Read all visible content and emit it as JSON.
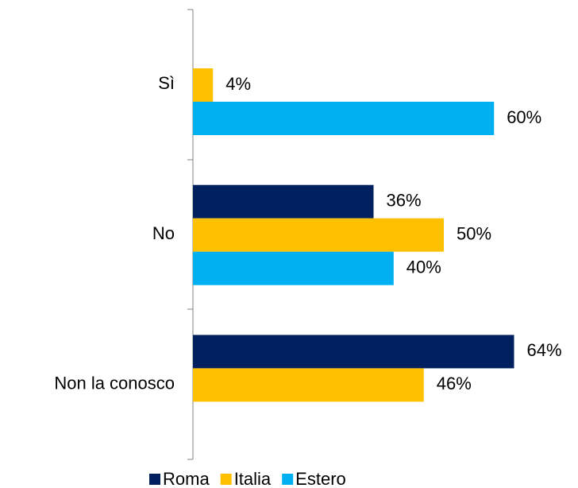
{
  "chart_data": {
    "type": "bar",
    "orientation": "horizontal",
    "categories": [
      "Sì",
      "No",
      "Non la conosco"
    ],
    "series": [
      {
        "name": "Roma",
        "color": "#002060",
        "values": [
          null,
          36,
          64
        ],
        "value_labels": [
          null,
          "36%",
          "64%"
        ]
      },
      {
        "name": "Italia",
        "color": "#ffc000",
        "values": [
          4,
          50,
          46
        ],
        "value_labels": [
          "4%",
          "50%",
          "46%"
        ]
      },
      {
        "name": "Estero",
        "color": "#00b0f0",
        "values": [
          60,
          40,
          null
        ],
        "value_labels": [
          "60%",
          "40%",
          null
        ]
      }
    ],
    "legend": "bottom"
  }
}
